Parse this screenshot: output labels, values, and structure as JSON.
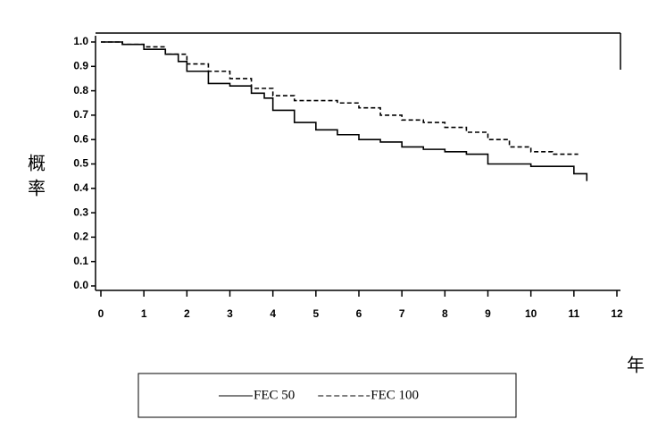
{
  "chart_data": {
    "type": "step-line",
    "ylabel": "概率",
    "xlabel": "年",
    "xlim": [
      0,
      12
    ],
    "xticks": [
      0,
      1,
      2,
      3,
      4,
      5,
      6,
      7,
      8,
      9,
      10,
      11,
      12
    ],
    "ylim": [
      0,
      1
    ],
    "yticks": [
      {
        "value": 0,
        "label": "0.0"
      },
      0.1,
      0.2,
      0.3,
      0.4,
      0.5,
      0.6,
      0.7,
      0.8,
      0.9,
      {
        "value": 1,
        "label": "1.0"
      }
    ],
    "series": [
      {
        "name": "FEC 50",
        "color": "#000000",
        "style": "solid",
        "x": [
          0,
          0.5,
          1,
          1.5,
          1.8,
          2,
          2.5,
          3,
          3.5,
          3.8,
          4,
          4.5,
          5,
          5.5,
          6,
          6.5,
          7,
          7.5,
          8,
          8.5,
          9,
          9.5,
          10,
          10.5,
          11,
          11.3
        ],
        "values": [
          1.0,
          0.99,
          0.97,
          0.95,
          0.92,
          0.88,
          0.83,
          0.82,
          0.79,
          0.77,
          0.72,
          0.67,
          0.64,
          0.62,
          0.6,
          0.59,
          0.57,
          0.56,
          0.55,
          0.54,
          0.5,
          0.5,
          0.49,
          0.49,
          0.46,
          0.43
        ]
      },
      {
        "name": "FEC 100",
        "color": "#000000",
        "style": "dashed",
        "x": [
          0,
          0.5,
          1,
          1.5,
          2,
          2.5,
          3,
          3.5,
          4,
          4.5,
          5,
          5.5,
          6,
          6.5,
          7,
          7.5,
          8,
          8.5,
          9,
          9.5,
          10,
          10.5,
          11.1
        ],
        "values": [
          1.0,
          0.99,
          0.98,
          0.95,
          0.91,
          0.88,
          0.85,
          0.81,
          0.78,
          0.76,
          0.76,
          0.75,
          0.73,
          0.7,
          0.68,
          0.67,
          0.65,
          0.63,
          0.6,
          0.57,
          0.55,
          0.54,
          0.54
        ]
      }
    ]
  }
}
